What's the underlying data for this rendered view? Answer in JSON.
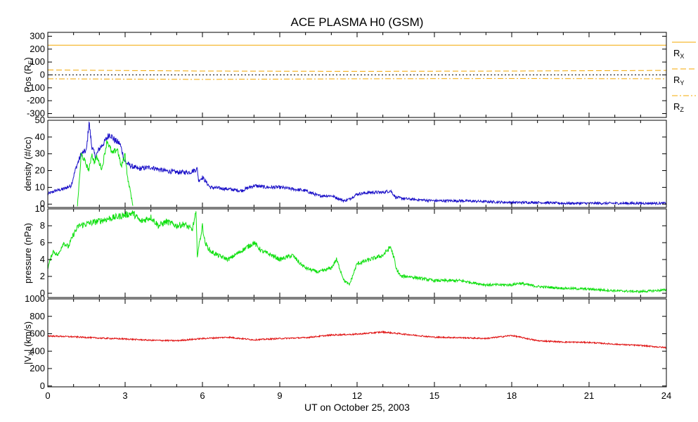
{
  "colors": {
    "axes": "#000000",
    "position": "#f4a800",
    "density_solar_wind": "#1a10c8",
    "density_alpha": "#10e010",
    "pressure": "#10e010",
    "velocity": "#e01010"
  },
  "chart_data": {
    "title": "ACE PLASMA H0 (GSM)",
    "xlabel": "UT on October 25, 2003",
    "xlim": [
      0,
      24
    ],
    "xticks": [
      0,
      3,
      6,
      9,
      12,
      15,
      18,
      21,
      24
    ],
    "xticklabels": [
      "0",
      "3",
      "6",
      "9",
      "12",
      "15",
      "18",
      "21",
      "24"
    ],
    "panels": [
      {
        "type": "line",
        "ylabel": "Pos (R",
        "ylabel_sub": "E",
        "ylabel_end": ")",
        "ylim": [
          -330,
          330
        ],
        "yticks": [
          300,
          200,
          100,
          0,
          -100,
          -200,
          -300
        ],
        "yticklabels": [
          "300",
          "200",
          "100",
          "0",
          "-100",
          "-200",
          "-300"
        ],
        "zero_line": true,
        "series": [
          {
            "name": "R",
            "sub": "X",
            "style": "solid",
            "x": [
              0,
              24
            ],
            "y": [
              230,
              230
            ]
          },
          {
            "name": "R",
            "sub": "Y",
            "style": "dashed",
            "x": [
              0,
              6,
              12,
              18,
              24
            ],
            "y": [
              38,
              30,
              28,
              30,
              35
            ]
          },
          {
            "name": "R",
            "sub": "Z",
            "style": "dashdot",
            "x": [
              0,
              6,
              12,
              18,
              24
            ],
            "y": [
              -30,
              -35,
              -30,
              -28,
              -30
            ]
          }
        ]
      },
      {
        "type": "line",
        "ylabel": "density (#/cc)",
        "ylim": [
          -2,
          50
        ],
        "yticks": [
          0,
          10,
          20,
          30,
          40,
          50
        ],
        "yticklabels": [
          "0",
          "10",
          "20",
          "30",
          "40",
          "50"
        ],
        "series": [
          {
            "style": "solid",
            "x": [
              0,
              0.3,
              0.6,
              0.9,
              1.1,
              1.3,
              1.5,
              1.6,
              1.7,
              1.85,
              2.0,
              2.2,
              2.4,
              2.6,
              2.8,
              3.0,
              3.2,
              3.5,
              4.0,
              4.5,
              5.0,
              5.5,
              5.8,
              5.85,
              6.0,
              6.3,
              7.0,
              7.5,
              8.0,
              8.5,
              9.0,
              9.5,
              10.0,
              10.5,
              11.0,
              11.5,
              11.7,
              12.0,
              12.5,
              13.0,
              13.3,
              13.5,
              14.0,
              15.0,
              16.0,
              17.0,
              18.0,
              19.0,
              20.0,
              21.0,
              22.0,
              23.0,
              24.0
            ],
            "y": [
              6,
              8,
              9,
              11,
              22,
              30,
              32,
              49,
              35,
              28,
              33,
              37,
              42,
              38,
              36,
              25,
              23,
              21,
              22,
              20,
              19,
              19,
              21,
              14,
              16,
              10,
              9,
              8,
              11,
              10,
              10,
              9,
              8,
              5,
              5,
              2,
              3,
              6,
              7,
              7,
              8,
              4,
              3,
              2,
              2,
              1.5,
              1,
              1,
              0.5,
              0.5,
              0.5,
              0.5,
              0.5
            ]
          },
          {
            "style": "solid",
            "x": [
              1.15,
              1.3,
              1.45,
              1.6,
              1.7,
              1.8,
              1.9,
              2.1,
              2.3,
              2.5,
              2.7,
              2.85,
              3.0,
              3.1,
              3.2,
              3.3
            ],
            "y": [
              -1,
              30,
              25,
              20,
              30,
              25,
              28,
              21,
              38,
              30,
              33,
              22,
              30,
              15,
              8,
              -1
            ]
          }
        ]
      },
      {
        "type": "line",
        "ylabel": "pressure (nPa)",
        "ylim": [
          -0.5,
          10
        ],
        "yticks": [
          0,
          2,
          4,
          6,
          8,
          10
        ],
        "yticklabels": [
          "0",
          "2",
          "4",
          "6",
          "8",
          "10"
        ],
        "series": [
          {
            "style": "solid",
            "x": [
              0,
              0.2,
              0.4,
              0.6,
              0.8,
              1.0,
              1.2,
              3.3,
              3.6,
              4.0,
              4.3,
              4.6,
              5.0,
              5.3,
              5.6,
              5.75,
              5.8,
              6.0,
              6.1,
              6.3,
              6.6,
              7.0,
              7.5,
              8.0,
              8.3,
              8.7,
              9.0,
              9.5,
              9.8,
              10.0,
              10.5,
              11.0,
              11.2,
              11.5,
              11.7,
              12.0,
              12.5,
              13.0,
              13.3,
              13.45,
              13.5,
              13.7,
              14.0,
              15.0,
              16.0,
              17.0,
              18.0,
              18.3,
              19.0,
              20.0,
              21.0,
              22.0,
              23.0,
              24.0
            ],
            "y": [
              3,
              5,
              4.5,
              6,
              5.5,
              7,
              8,
              9.5,
              8.5,
              9,
              8,
              8.5,
              8,
              8.2,
              7.5,
              9.5,
              4.5,
              8,
              6,
              5,
              4.5,
              4,
              5,
              6,
              5,
              4.5,
              4,
              4.5,
              3.5,
              3,
              2.5,
              3,
              4,
              1.5,
              1,
              3.5,
              4,
              4.5,
              5.5,
              4,
              3,
              2,
              2,
              1.5,
              1.5,
              1,
              1,
              1.2,
              0.8,
              0.6,
              0.5,
              0.3,
              0.2,
              0.4
            ]
          }
        ]
      },
      {
        "type": "line",
        "ylabel": "|V",
        "ylabel_sub": "X",
        "ylabel_end": "| (km/s)",
        "ylim": [
          -10,
          1000
        ],
        "yticks": [
          0,
          200,
          400,
          600,
          800,
          1000
        ],
        "yticklabels": [
          "0",
          "200",
          "400",
          "600",
          "800",
          "1000"
        ],
        "series": [
          {
            "style": "solid",
            "x": [
              0,
              1,
              2,
              3,
              4,
              5,
              6,
              7,
              8,
              9,
              10,
              11,
              12,
              13,
              14,
              15,
              16,
              17,
              18,
              19,
              20,
              21,
              22,
              23,
              24
            ],
            "y": [
              575,
              565,
              550,
              540,
              525,
              520,
              545,
              560,
              530,
              545,
              555,
              585,
              595,
              620,
              590,
              560,
              555,
              545,
              580,
              520,
              505,
              500,
              480,
              465,
              440
            ]
          }
        ]
      }
    ]
  }
}
